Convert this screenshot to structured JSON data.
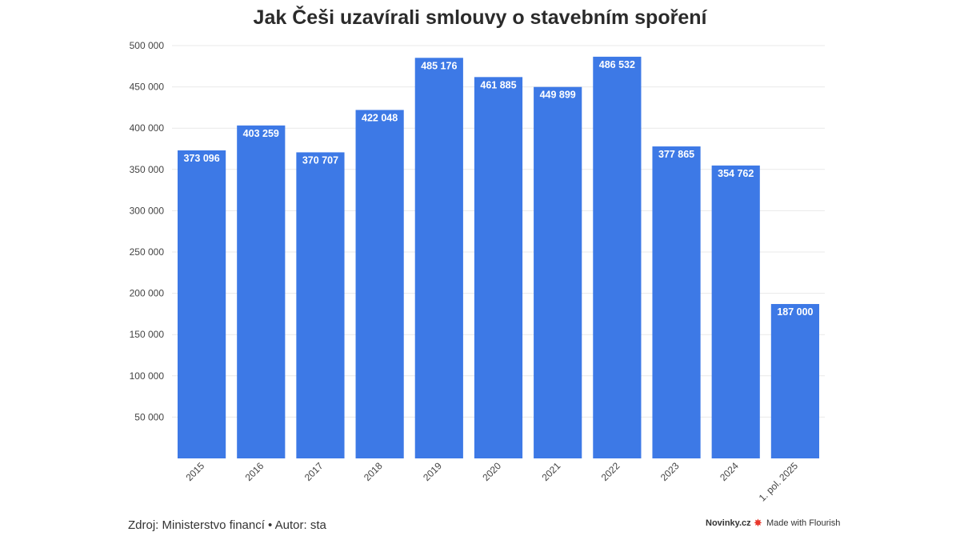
{
  "chart_data": {
    "type": "bar",
    "title": "Jak Češi uzavírali smlouvy o stavebním spoření",
    "categories": [
      "2015",
      "2016",
      "2017",
      "2018",
      "2019",
      "2020",
      "2021",
      "2022",
      "2023",
      "2024",
      "1. pol. 2025"
    ],
    "values": [
      373096,
      403259,
      370707,
      422048,
      485176,
      461885,
      449899,
      486532,
      377865,
      354762,
      187000
    ],
    "value_labels": [
      "373 096",
      "403 259",
      "370 707",
      "422 048",
      "485 176",
      "461 885",
      "449 899",
      "486 532",
      "377 865",
      "354 762",
      "187 000"
    ],
    "y_ticks": [
      50000,
      100000,
      150000,
      200000,
      250000,
      300000,
      350000,
      400000,
      450000,
      500000
    ],
    "y_tick_labels": [
      "50 000",
      "100 000",
      "150 000",
      "200 000",
      "250 000",
      "300 000",
      "350 000",
      "400 000",
      "450 000",
      "500 000"
    ],
    "ylim": [
      0,
      500000
    ],
    "xlabel": "",
    "ylabel": "",
    "grid": true,
    "bar_color": "#3d79e6"
  },
  "footer": {
    "source": "Zdroj: Ministerstvo financí • Autor: sta",
    "brand": "Novinky.cz",
    "flourish": "Made with Flourish"
  },
  "icons": {
    "flourish": "flourish-logo-icon"
  }
}
